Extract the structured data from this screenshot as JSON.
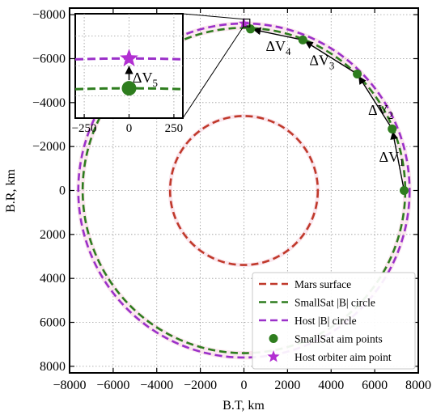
{
  "chart_data": {
    "type": "scatter",
    "title": "",
    "xlabel": "B.T, km",
    "ylabel": "B.R, km",
    "xlim": [
      -8000,
      8000
    ],
    "ylim": [
      -8300,
      8300
    ],
    "y_axis_inverted": true,
    "grid": true,
    "grid_style": "dotted",
    "x_ticks": [
      -8000,
      -6000,
      -4000,
      -2000,
      0,
      2000,
      4000,
      6000,
      8000
    ],
    "x_tick_labels": [
      "−8000",
      "−6000",
      "−4000",
      "−2000",
      "0",
      "2000",
      "4000",
      "6000",
      "8000"
    ],
    "y_ticks": [
      -8000,
      -6000,
      -4000,
      -2000,
      0,
      2000,
      4000,
      6000,
      8000
    ],
    "y_tick_labels": [
      "−8000",
      "−6000",
      "−4000",
      "−2000",
      "0",
      "2000",
      "4000",
      "6000",
      "8000"
    ],
    "legend_position": "bottom-right",
    "series": [
      {
        "name": "Mars surface",
        "kind": "circle",
        "radius": 3390,
        "color": "#c0392b",
        "style": "dashed"
      },
      {
        "name": "SmallSat |B| circle",
        "kind": "circle",
        "radius": 7400,
        "color": "#2e7d1e",
        "style": "dashed"
      },
      {
        "name": "Host |B| circle",
        "kind": "circle",
        "radius": 7600,
        "color": "#9b30c9",
        "style": "dashed"
      },
      {
        "name": "SmallSat aim points",
        "kind": "markers",
        "marker": "circle",
        "color": "#2e7d1e",
        "points": [
          [
            7350,
            0
          ],
          [
            6800,
            -2800
          ],
          [
            5200,
            -5300
          ],
          [
            2700,
            -6850
          ],
          [
            300,
            -7350
          ]
        ]
      },
      {
        "name": "Host orbiter aim point",
        "kind": "markers",
        "marker": "star",
        "color": "#b22fd2",
        "points": [
          [
            0,
            -7600
          ]
        ]
      }
    ],
    "annotations": [
      {
        "base": "ΔV",
        "sub": "1",
        "x": 6200,
        "y": -1300
      },
      {
        "base": "ΔV",
        "sub": "2",
        "x": 5700,
        "y": -3450
      },
      {
        "base": "ΔV",
        "sub": "3",
        "x": 3000,
        "y": -5700
      },
      {
        "base": "ΔV",
        "sub": "4",
        "x": 1000,
        "y": -6350
      }
    ],
    "inset": {
      "xlim": [
        -300,
        300
      ],
      "ylim": [
        -7900,
        -7200
      ],
      "x_ticks": [
        -250,
        0,
        250
      ],
      "x_tick_labels": [
        "−250",
        "0",
        "250"
      ],
      "annotation": {
        "base": "ΔV",
        "sub": "5"
      },
      "zoom_box": {
        "x": [
          -30,
          270
        ],
        "y": [
          -7800,
          -7450
        ]
      }
    },
    "colors": {
      "mars": "#c0392b",
      "smallsat": "#2e7d1e",
      "host": "#9b30c9",
      "host_star": "#b22fd2",
      "marker_halo": "#f0b8cc"
    }
  }
}
